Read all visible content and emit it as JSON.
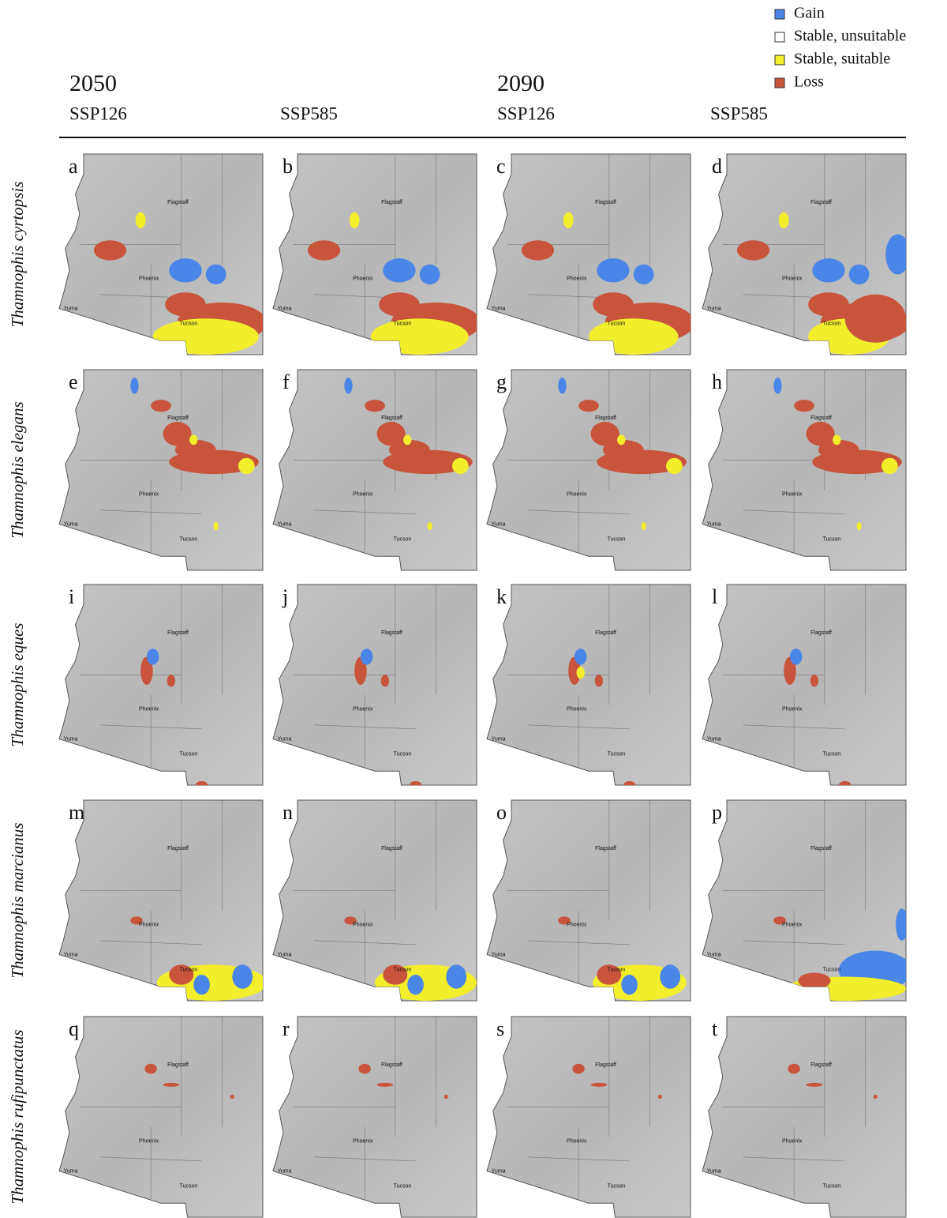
{
  "legend": [
    {
      "label": "Gain",
      "color": "#4a86e8"
    },
    {
      "label": "Stable, unsuitable",
      "color": "#ffffff"
    },
    {
      "label": "Stable, suitable",
      "color": "#f2ee2c"
    },
    {
      "label": "Loss",
      "color": "#c8553b"
    }
  ],
  "columns": {
    "years": [
      "2050",
      "2090"
    ],
    "scenarios": [
      "SSP126",
      "SSP585",
      "SSP126",
      "SSP585"
    ]
  },
  "rows": [
    {
      "species": "Thamnophis cyrtopsis",
      "panels": [
        "a",
        "b",
        "c",
        "d"
      ]
    },
    {
      "species": "Thamnophis elegans",
      "panels": [
        "e",
        "f",
        "g",
        "h"
      ]
    },
    {
      "species": "Thamnophis eques",
      "panels": [
        "i",
        "j",
        "k",
        "l"
      ]
    },
    {
      "species": "Thamnophis marcianus",
      "panels": [
        "m",
        "n",
        "o",
        "p"
      ]
    },
    {
      "species": "Thamnophis rufipunctatus",
      "panels": [
        "q",
        "r",
        "s",
        "t"
      ]
    }
  ],
  "cities": [
    "Flagstaff",
    "Phoenix",
    "Yuma",
    "Tucson"
  ]
}
